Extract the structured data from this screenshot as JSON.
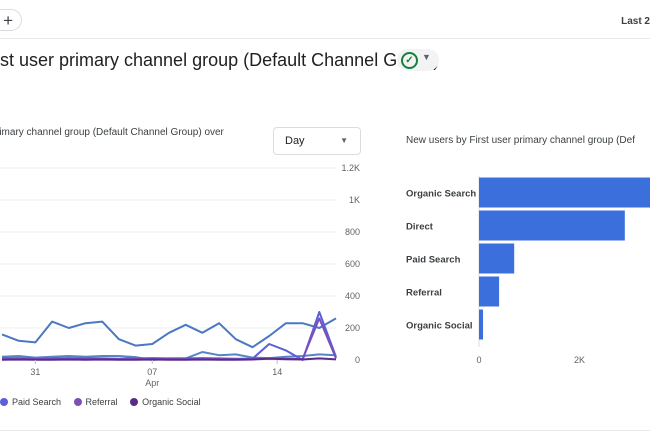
{
  "topbar": {
    "add_label": "+",
    "date_range": "Last 2"
  },
  "header": {
    "title": "rst user primary channel group (Default Channel Group)",
    "status_icon": "check-circle-icon"
  },
  "line_card": {
    "title": "rimary channel group (Default Channel Group) over",
    "granularity": "Day",
    "legend": [
      {
        "label": "Paid Search",
        "color": "#5b5fdb"
      },
      {
        "label": "Referral",
        "color": "#7b50b8"
      },
      {
        "label": "Organic Social",
        "color": "#5c2b8a"
      }
    ]
  },
  "bar_card": {
    "title": "New users by First user primary channel group (Def"
  },
  "chart_data": [
    {
      "type": "line",
      "title": "rimary channel group (Default Channel Group) over",
      "x_tick_labels": [
        "31",
        "07",
        "Apr",
        "14"
      ],
      "y_tick_labels": [
        "1.2K",
        "1K",
        "800",
        "600",
        "400",
        "200",
        "0"
      ],
      "ylim": [
        0,
        1200
      ],
      "grid": true,
      "series": [
        {
          "name": "",
          "color": "#4a78c2",
          "values": [
            160,
            120,
            110,
            240,
            200,
            230,
            240,
            130,
            90,
            100,
            170,
            220,
            170,
            230,
            130,
            80,
            150,
            230,
            230,
            200,
            260
          ]
        },
        {
          "name": "",
          "color": "#5484c9",
          "values": [
            20,
            25,
            15,
            20,
            25,
            20,
            25,
            25,
            18,
            0,
            10,
            10,
            50,
            30,
            35,
            15,
            12,
            20,
            25,
            35,
            30
          ]
        },
        {
          "name": "Paid Search",
          "color": "#5b5fdb",
          "values": [
            10,
            12,
            8,
            10,
            12,
            10,
            10,
            8,
            10,
            12,
            10,
            10,
            12,
            10,
            8,
            8,
            100,
            60,
            0,
            300,
            20
          ]
        },
        {
          "name": "Referral",
          "color": "#7b50b8",
          "values": [
            5,
            8,
            5,
            6,
            5,
            6,
            8,
            5,
            6,
            5,
            6,
            5,
            5,
            6,
            5,
            5,
            10,
            8,
            6,
            260,
            10
          ]
        },
        {
          "name": "Organic Social",
          "color": "#5c2b8a",
          "values": [
            2,
            3,
            2,
            2,
            3,
            2,
            3,
            2,
            2,
            3,
            2,
            2,
            3,
            2,
            2,
            3,
            8,
            5,
            3,
            10,
            4
          ]
        }
      ]
    },
    {
      "type": "bar",
      "title": "New users by First user primary channel group (Def",
      "categories": [
        "Organic Search",
        "Direct",
        "Paid Search",
        "Referral",
        "Organic Social"
      ],
      "values": [
        3600,
        2900,
        700,
        400,
        80
      ],
      "x_tick_labels": [
        "0",
        "2K"
      ],
      "xlim": [
        0,
        3600
      ],
      "color": "#3b6fdc"
    }
  ]
}
